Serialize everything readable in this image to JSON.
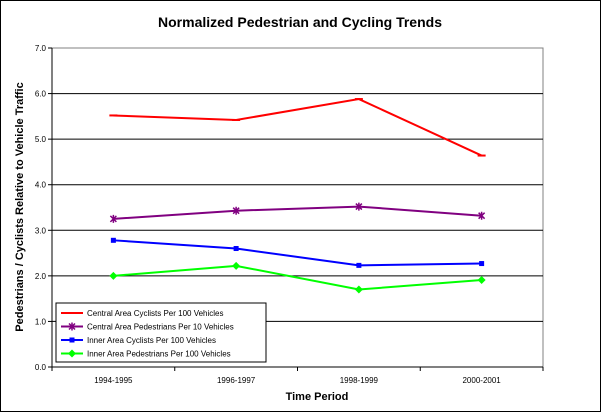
{
  "chart_data": {
    "type": "line",
    "title": "Normalized Pedestrian and Cycling Trends",
    "xlabel": "Time Period",
    "ylabel": "Pedestrians / Cyclists Relative to Vehicle Traffic",
    "categories": [
      "1994-1995",
      "1996-1997",
      "1998-1999",
      "2000-2001"
    ],
    "ylim": [
      0,
      7
    ],
    "yticks": [
      "0.0",
      "1.0",
      "2.0",
      "3.0",
      "4.0",
      "5.0",
      "6.0",
      "7.0"
    ],
    "grid": true,
    "legend_position": "bottom-left",
    "series": [
      {
        "name": "Central Area Cyclists Per 100 Vehicles",
        "color": "#ff0000",
        "marker": "dash",
        "values": [
          5.52,
          5.42,
          5.88,
          4.64
        ]
      },
      {
        "name": "Central Area Pedestrians Per 10 Vehicles",
        "color": "#800080",
        "marker": "star",
        "values": [
          3.25,
          3.43,
          3.52,
          3.32
        ]
      },
      {
        "name": "Inner Area Cyclists Per 100 Vehicles",
        "color": "#0000ff",
        "marker": "square",
        "values": [
          2.78,
          2.6,
          2.23,
          2.27
        ]
      },
      {
        "name": "Inner Area Pedestrians Per 100 Vehicles",
        "color": "#00ff00",
        "marker": "diamond",
        "values": [
          2.0,
          2.22,
          1.7,
          1.91
        ]
      }
    ]
  }
}
